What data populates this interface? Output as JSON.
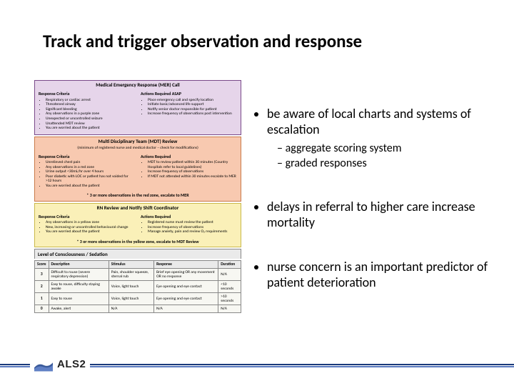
{
  "title": "Track and trigger observation and response",
  "mer": {
    "header": "Medical Emergency Response (MER) Call",
    "left_title": "Response Criteria",
    "left_items": [
      "Respiratory or cardiac arrest",
      "Threatened airway",
      "Significant bleeding",
      "Any observations in a purple zone",
      "Unexpected or uncontrolled seizure",
      "Unattended MDT review",
      "You are worried about the patient"
    ],
    "right_title": "Actions Required ASAP",
    "right_items": [
      "Place emergency call and specify location",
      "Initiate basic/advanced life support",
      "Notify senior doctor responsible for patient",
      "Increase frequency of observations post intervention"
    ]
  },
  "mdt": {
    "header": "Multi Disciplinary Team (MDT) Review",
    "sub": "(minimum of registered nurse and medical doctor – check for modifications)",
    "left_title": "Response Criteria",
    "left_items": [
      "Unrelieved chest pain",
      "Any observations in a red zone",
      "Urine output <30mL/hr over 4 hours",
      "Poor diabetic with LOC or patient has not voided for >12 hours",
      "You are worried about the patient"
    ],
    "right_title": "Actions Required",
    "right_items": [
      "MDT to review patient within 30 minutes (Country Hospitals refer to local guidelines)",
      "Increase frequency of observations",
      "If MDT not attended within 30 minutes escalate to MER"
    ],
    "foot": "* 3 or more observations in the red zone, escalate to MER"
  },
  "rn": {
    "header": "RN Review and Notify Shift Coordinator",
    "left_title": "Response Criteria",
    "left_items": [
      "Any observations in a yellow zone",
      "New, increasing or uncontrolled behavioural change",
      "You are worried about the patient"
    ],
    "right_title": "Actions Required",
    "right_items": [
      "Registered nurse must review the patient",
      "Increase frequency of observations",
      "Manage anxiety, pain and review O₂ requirements"
    ],
    "foot": "* 3 or more observations in the yellow zone, escalate to MDT Review"
  },
  "loc": {
    "title": "Level of Consciousness / Sedation",
    "columns": [
      "Score",
      "Description",
      "Stimulus",
      "Response",
      "Duration"
    ],
    "rows": [
      [
        "3",
        "Difficult to rouse (severe respiratory depression)",
        "Pain, shoulder squeeze, sternal rub",
        "Brief eye opening OR any movement OR no response",
        "N/A"
      ],
      [
        "2",
        "Easy to rouse, difficulty staying awake",
        "Voice, light touch",
        "Eye opening and eye contact",
        "<10 seconds"
      ],
      [
        "1",
        "Easy to rouse",
        "Voice, light touch",
        "Eye opening and eye contact",
        ">10 seconds"
      ],
      [
        "0",
        "Awake, alert",
        "N/A",
        "N/A",
        "N/A"
      ]
    ]
  },
  "bullets": {
    "b1": "be aware of local charts and systems of escalation",
    "b1a": "aggregate scoring system",
    "b1b": "graded responses",
    "b2": "delays in referral to higher care increase mortality",
    "b3": "nurse concern is an important predictor of patient deterioration"
  },
  "logo_text": "ALS2"
}
